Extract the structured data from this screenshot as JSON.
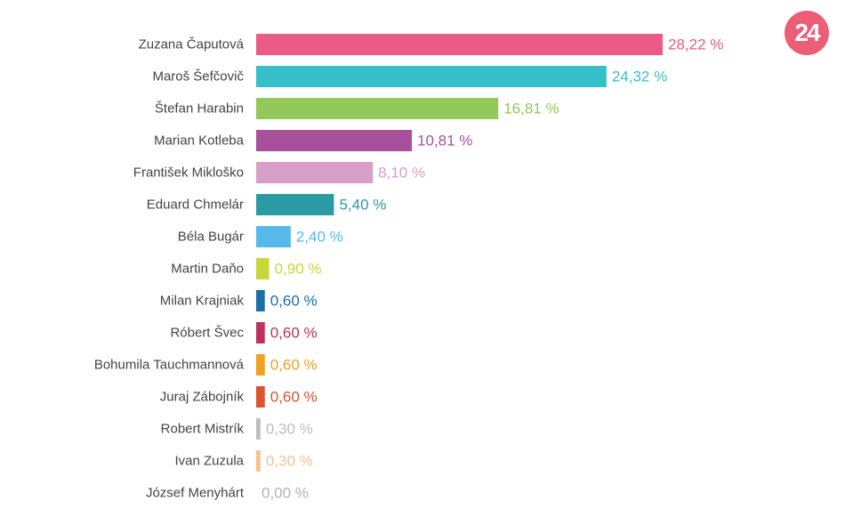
{
  "brand": {
    "logo_text": "24",
    "logo_color": "#ec5d78"
  },
  "chart_data": {
    "type": "bar",
    "orientation": "horizontal",
    "title": "",
    "xlabel": "",
    "ylabel": "",
    "xlim": [
      0,
      28.22
    ],
    "grid": false,
    "legend": "none",
    "categories": [
      "Zuzana Čaputová",
      "Maroš Šefčovič",
      "Štefan Harabin",
      "Marian Kotleba",
      "František Mikloško",
      "Eduard Chmelár",
      "Béla Bugár",
      "Martin Daňo",
      "Milan Krajniak",
      "Róbert Švec",
      "Bohumila Tauchmannová",
      "Juraj Zábojník",
      "Robert Mistrík",
      "Ivan Zuzula",
      "József Menyhárt"
    ],
    "values": [
      28.22,
      24.32,
      16.81,
      10.81,
      8.1,
      5.4,
      2.4,
      0.9,
      0.6,
      0.6,
      0.6,
      0.6,
      0.3,
      0.3,
      0.0
    ],
    "value_labels": [
      "28,22 %",
      "24,32 %",
      "16,81 %",
      "10,81 %",
      "8,10 %",
      "5,40 %",
      "2,40 %",
      "0,90 %",
      "0,60 %",
      "0,60 %",
      "0,60 %",
      "0,60 %",
      "0,30 %",
      "0,30 %",
      "0,00 %"
    ],
    "colors": [
      "#ec5a86",
      "#35bfc9",
      "#93c95a",
      "#a9509c",
      "#d79ec7",
      "#2b9aa4",
      "#56b9ea",
      "#c7d73a",
      "#1c6ea8",
      "#c0305e",
      "#f2a01e",
      "#df5230",
      "#bdbdbd",
      "#f7c28e",
      "#b3b3b3"
    ]
  }
}
